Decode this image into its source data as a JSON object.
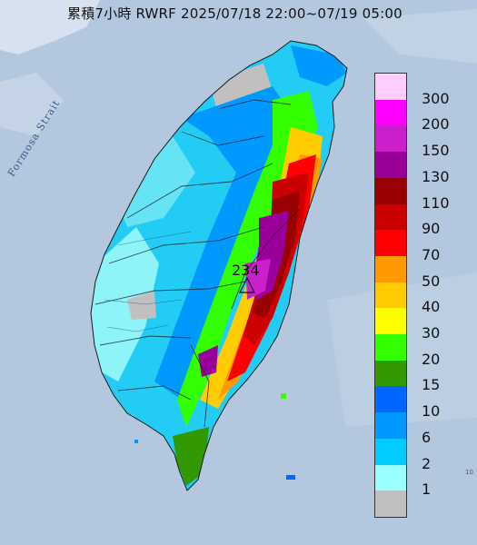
{
  "title": "累積7小時 RWRF 2025/07/18 22:00~07/19 05:00",
  "map": {
    "sea_label": "Formosa Strait",
    "peak_value": "234",
    "corner_mark": "10"
  },
  "legend": {
    "items": [
      {
        "label": "300",
        "color": "#ffccff"
      },
      {
        "label": "200",
        "color": "#ff00ff"
      },
      {
        "label": "150",
        "color": "#cc1fcc"
      },
      {
        "label": "130",
        "color": "#990099"
      },
      {
        "label": "110",
        "color": "#990000"
      },
      {
        "label": "90",
        "color": "#cc0000"
      },
      {
        "label": "70",
        "color": "#ff0000"
      },
      {
        "label": "50",
        "color": "#ff9900"
      },
      {
        "label": "40",
        "color": "#ffcc00"
      },
      {
        "label": "30",
        "color": "#ffff00"
      },
      {
        "label": "20",
        "color": "#33ff00"
      },
      {
        "label": "15",
        "color": "#339900"
      },
      {
        "label": "10",
        "color": "#0066ff"
      },
      {
        "label": "6",
        "color": "#0099ff"
      },
      {
        "label": "2",
        "color": "#00ccff"
      },
      {
        "label": "1",
        "color": "#99ffff"
      },
      {
        "label": "",
        "color": "#c0c0c0"
      }
    ]
  }
}
